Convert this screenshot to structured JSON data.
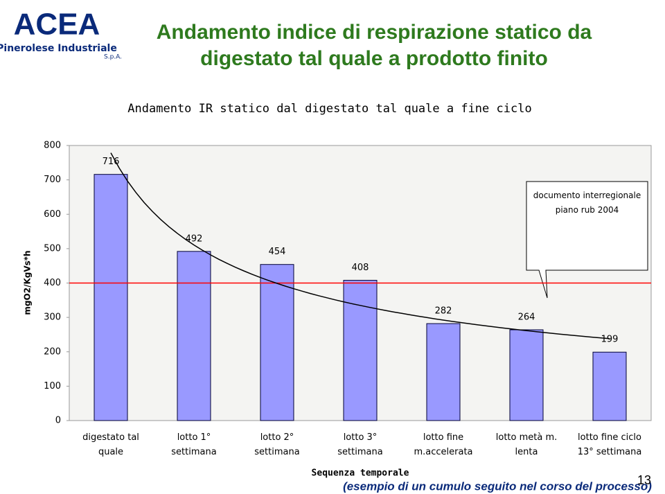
{
  "header": {
    "logo": "ACEA",
    "logo_sub": "Pinerolese Industriale",
    "logo_sa": "S.p.A.",
    "title": "Andamento indice di respirazione statico da digestato tal quale a prodotto finito"
  },
  "chart_data": {
    "type": "bar",
    "title": "Andamento IR statico dal digestato tal quale a fine ciclo",
    "y_label": "mgO2/KgVs*h",
    "x_label": "Sequenza temporale",
    "categories": [
      "digestato tal quale",
      "lotto 1° settimana",
      "lotto 2° settimana",
      "lotto 3° settimana",
      "lotto fine m.accelerata",
      "lotto metà m. lenta",
      "lotto fine ciclo 13° settimana"
    ],
    "values": [
      716,
      492,
      454,
      408,
      282,
      264,
      199
    ],
    "color": "#9999ff",
    "ylim": [
      0,
      800
    ],
    "yticks": [
      0,
      100,
      200,
      300,
      400,
      500,
      600,
      700,
      800
    ],
    "reference_line": 400,
    "reference_color": "#ff0000",
    "trendline": true,
    "annotation": "documento interregionale piano rub 2004"
  },
  "footer": {
    "note": "(esempio di un cumulo seguito nel corso del processo)",
    "page": "13"
  }
}
